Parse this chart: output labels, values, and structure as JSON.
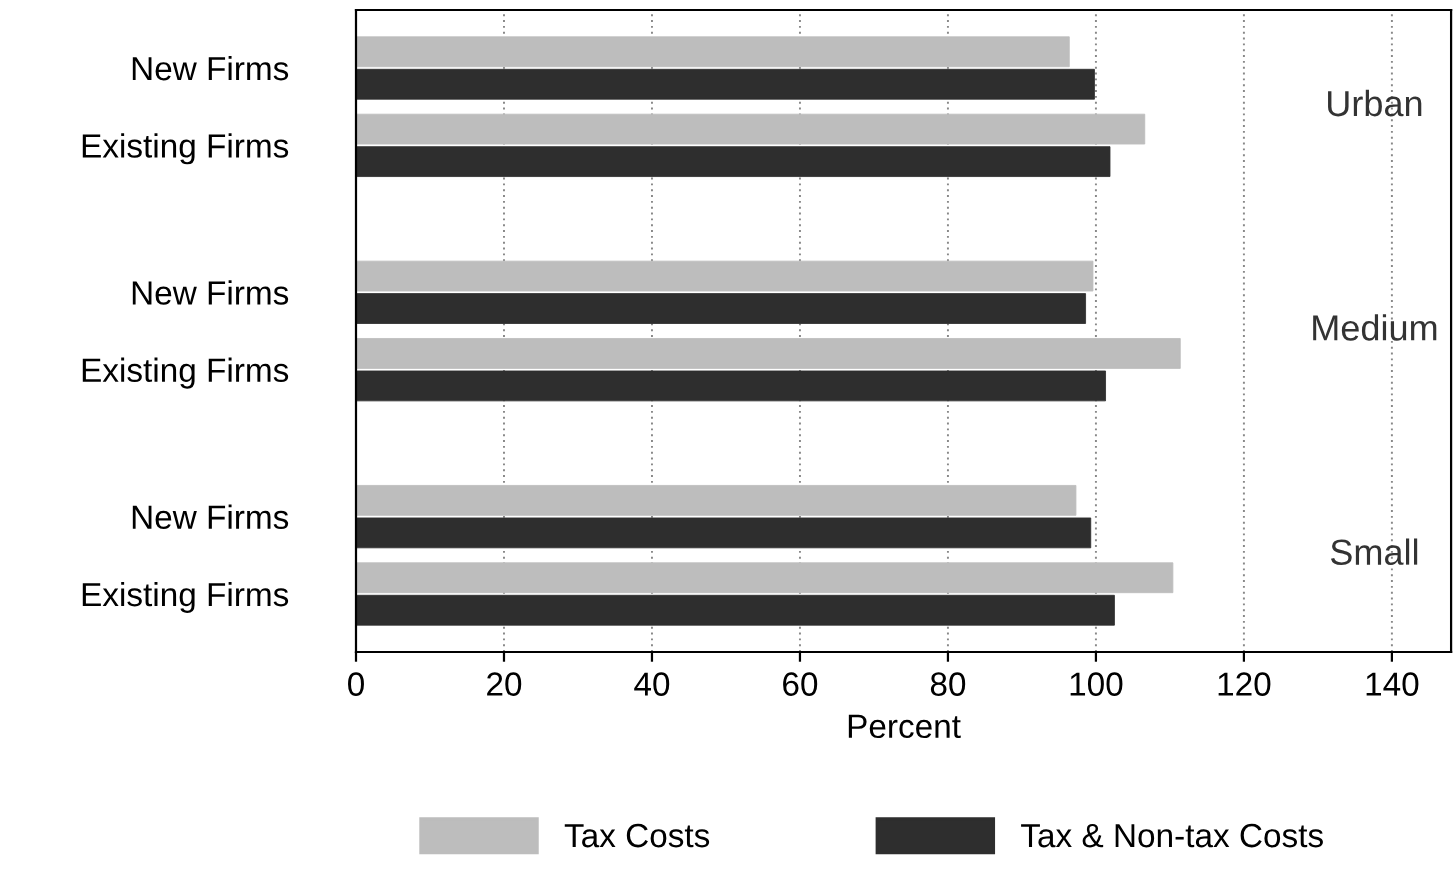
{
  "chart_data": {
    "type": "bar",
    "orientation": "horizontal",
    "xlabel": "Percent",
    "categories": [
      "New Firms",
      "Existing Firms",
      "New Firms",
      "Existing Firms",
      "New Firms",
      "Existing Firms"
    ],
    "series": [
      {
        "name": "Tax Costs",
        "color": "#bdbdbd",
        "values": [
          96.4,
          106.6,
          99.6,
          111.4,
          97.3,
          110.4
        ]
      },
      {
        "name": "Tax & Non-tax Costs",
        "color": "#2e2e2e",
        "values": [
          99.8,
          101.9,
          98.6,
          101.3,
          99.3,
          102.5
        ]
      }
    ],
    "annotations": [
      "Urban",
      "Medium",
      "Small"
    ],
    "xlim": [
      0,
      148
    ],
    "xticks": [
      0,
      20,
      40,
      60,
      80,
      100,
      120,
      140
    ],
    "grid": "x",
    "legend": "bottom"
  }
}
